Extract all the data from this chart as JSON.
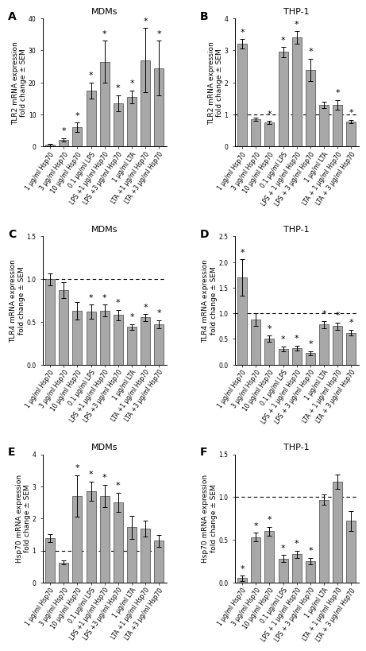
{
  "panel_A": {
    "title": "MDMs",
    "ylabel": "TLR2 mRNA expression\nfold change ± SEM",
    "label": "A",
    "ylim": [
      0,
      40
    ],
    "yticks": [
      0,
      10,
      20,
      30,
      40
    ],
    "dashed_line": null,
    "values": [
      0.5,
      2.2,
      6.0,
      17.5,
      26.5,
      13.5,
      15.5,
      27.0,
      24.5
    ],
    "errors": [
      0.3,
      0.5,
      1.5,
      2.5,
      6.5,
      2.5,
      2.0,
      10.0,
      8.5
    ],
    "sig": [
      false,
      true,
      true,
      true,
      true,
      true,
      true,
      true,
      true
    ],
    "xticklabels": [
      "1 μg/ml Hsp70",
      "3 μg/ml Hsp70",
      "10 μg/ml Hsp70",
      "0.1 μg/ml LPS",
      "LPS +1 μg/ml Hsp70",
      "LPS +3 μg/ml Hsp70",
      "1 μg/ml LTA",
      "LTA +1 μg/ml Hsp70",
      "LTA +3 μg/ml Hsp70"
    ]
  },
  "panel_B": {
    "title": "THP-1",
    "ylabel": "TLR2 mRNA expression\nfold change ± SEM",
    "label": "B",
    "ylim": [
      0,
      4
    ],
    "yticks": [
      0,
      1,
      2,
      3,
      4
    ],
    "dashed_line": 1.0,
    "values": [
      3.2,
      0.85,
      0.75,
      2.95,
      3.4,
      2.4,
      1.3,
      1.3,
      0.78
    ],
    "errors": [
      0.15,
      0.05,
      0.05,
      0.15,
      0.2,
      0.35,
      0.1,
      0.15,
      0.05
    ],
    "sig": [
      true,
      false,
      true,
      true,
      true,
      true,
      false,
      true,
      true
    ],
    "xticklabels": [
      "1 μg/ml Hsp70",
      "3 μg/ml Hsp70",
      "10 μg/ml Hsp70",
      "0.1 μg/ml LPS",
      "LPS + 1 μg/ml Hsp70",
      "LPS + 3 μg/ml Hsp70",
      "1 μg/ml LTA",
      "LTA + 1 μg/ml Hsp70",
      "LTA + 3 μg/ml Hsp70"
    ]
  },
  "panel_C": {
    "title": "MDMs",
    "ylabel": "TLR4 mRNA expression\nfold change ± SEM",
    "label": "C",
    "ylim": [
      0,
      1.5
    ],
    "yticks": [
      0.0,
      0.5,
      1.0,
      1.5
    ],
    "dashed_line": 1.0,
    "values": [
      1.0,
      0.87,
      0.63,
      0.62,
      0.63,
      0.58,
      0.44,
      0.55,
      0.47
    ],
    "errors": [
      0.07,
      0.09,
      0.1,
      0.08,
      0.07,
      0.06,
      0.03,
      0.04,
      0.05
    ],
    "sig": [
      false,
      false,
      false,
      true,
      true,
      true,
      true,
      true,
      true
    ],
    "xticklabels": [
      "1 μg/ml Hsp70",
      "3 μg/ml Hsp70",
      "10 μg/ml Hsp70",
      "0.1 μg/ml LPS",
      "LPS +1 μg/ml Hsp70",
      "LPS +3 μg/ml Hsp70",
      "1 μg/ml LTA",
      "LTA +1 μg/ml Hsp70",
      "LTA +3 μg/ml Hsp70"
    ]
  },
  "panel_D": {
    "title": "THP-1",
    "ylabel": "TLR4 mRNA expression\nfold change ± SEM",
    "label": "D",
    "ylim": [
      0,
      2.5
    ],
    "yticks": [
      0.0,
      0.5,
      1.0,
      1.5,
      2.0,
      2.5
    ],
    "dashed_line": 1.0,
    "values": [
      1.7,
      0.88,
      0.5,
      0.3,
      0.32,
      0.22,
      0.78,
      0.75,
      0.62
    ],
    "errors": [
      0.35,
      0.12,
      0.06,
      0.05,
      0.05,
      0.04,
      0.07,
      0.07,
      0.06
    ],
    "sig": [
      true,
      false,
      true,
      true,
      true,
      true,
      true,
      true,
      true
    ],
    "xticklabels": [
      "1 μg/ml Hsp70",
      "3 μg/ml Hsp70",
      "10 μg/ml Hsp70",
      "0.1 μg/ml LPS",
      "LPS + 1 μg/ml Hsp70",
      "LPS + 3 μg/ml Hsp70",
      "1 μg/ml LTA",
      "LTA + 1 μg/ml Hsp70",
      "LTA + 3 μg/ml Hsp70"
    ]
  },
  "panel_E": {
    "title": "MDMs",
    "ylabel": "Hsp70 mRNA expression\nfold change ± SEM",
    "label": "E",
    "ylim": [
      0,
      4
    ],
    "yticks": [
      0,
      1,
      2,
      3,
      4
    ],
    "dashed_line": 1.0,
    "values": [
      1.38,
      0.62,
      2.7,
      2.85,
      2.7,
      2.5,
      1.72,
      1.68,
      1.3
    ],
    "errors": [
      0.12,
      0.06,
      0.65,
      0.3,
      0.35,
      0.3,
      0.35,
      0.25,
      0.18
    ],
    "sig": [
      false,
      false,
      true,
      true,
      true,
      true,
      false,
      false,
      false
    ],
    "xticklabels": [
      "1 μg/ml Hsp70",
      "3 μg/ml Hsp70",
      "10 μg/ml Hsp70",
      "0.1 μg/ml LPS",
      "LPS +1 μg/ml Hsp70",
      "LPS +3 μg/ml Hsp70",
      "1 μg/ml LTA",
      "LTA +1 μg/ml Hsp70",
      "LTA +3 μg/ml Hsp70"
    ]
  },
  "panel_F": {
    "title": "THP-1",
    "ylabel": "Hsp70 mRNA expression\nfold change ± SEM",
    "label": "F",
    "ylim": [
      0,
      1.5
    ],
    "yticks": [
      0.0,
      0.5,
      1.0,
      1.5
    ],
    "dashed_line": 1.0,
    "values": [
      0.05,
      0.53,
      0.6,
      0.28,
      0.33,
      0.25,
      0.97,
      1.18,
      0.72
    ],
    "errors": [
      0.03,
      0.05,
      0.05,
      0.04,
      0.04,
      0.04,
      0.06,
      0.08,
      0.12
    ],
    "sig": [
      true,
      true,
      true,
      true,
      true,
      true,
      false,
      false,
      false
    ],
    "xticklabels": [
      "1 μg/ml Hsp70",
      "3 μg/ml Hsp70",
      "10 μg/ml Hsp70",
      "0.1 μg/ml LPS",
      "LPS + 1 μg/ml Hsp70",
      "LPS + 3 μg/ml Hsp70",
      "1 μg/ml LTA",
      "LTA + 1 μg/ml Hsp70",
      "LTA + 3 μg/ml Hsp70"
    ]
  },
  "bar_color": "#a8a8a8",
  "bar_edge_color": "#444444",
  "bar_width": 0.7,
  "capsize": 2.5,
  "sig_marker": "*",
  "sig_fontsize": 8,
  "title_fontsize": 8,
  "ylabel_fontsize": 6.5,
  "tick_fontsize": 5.5,
  "label_fontsize": 10
}
